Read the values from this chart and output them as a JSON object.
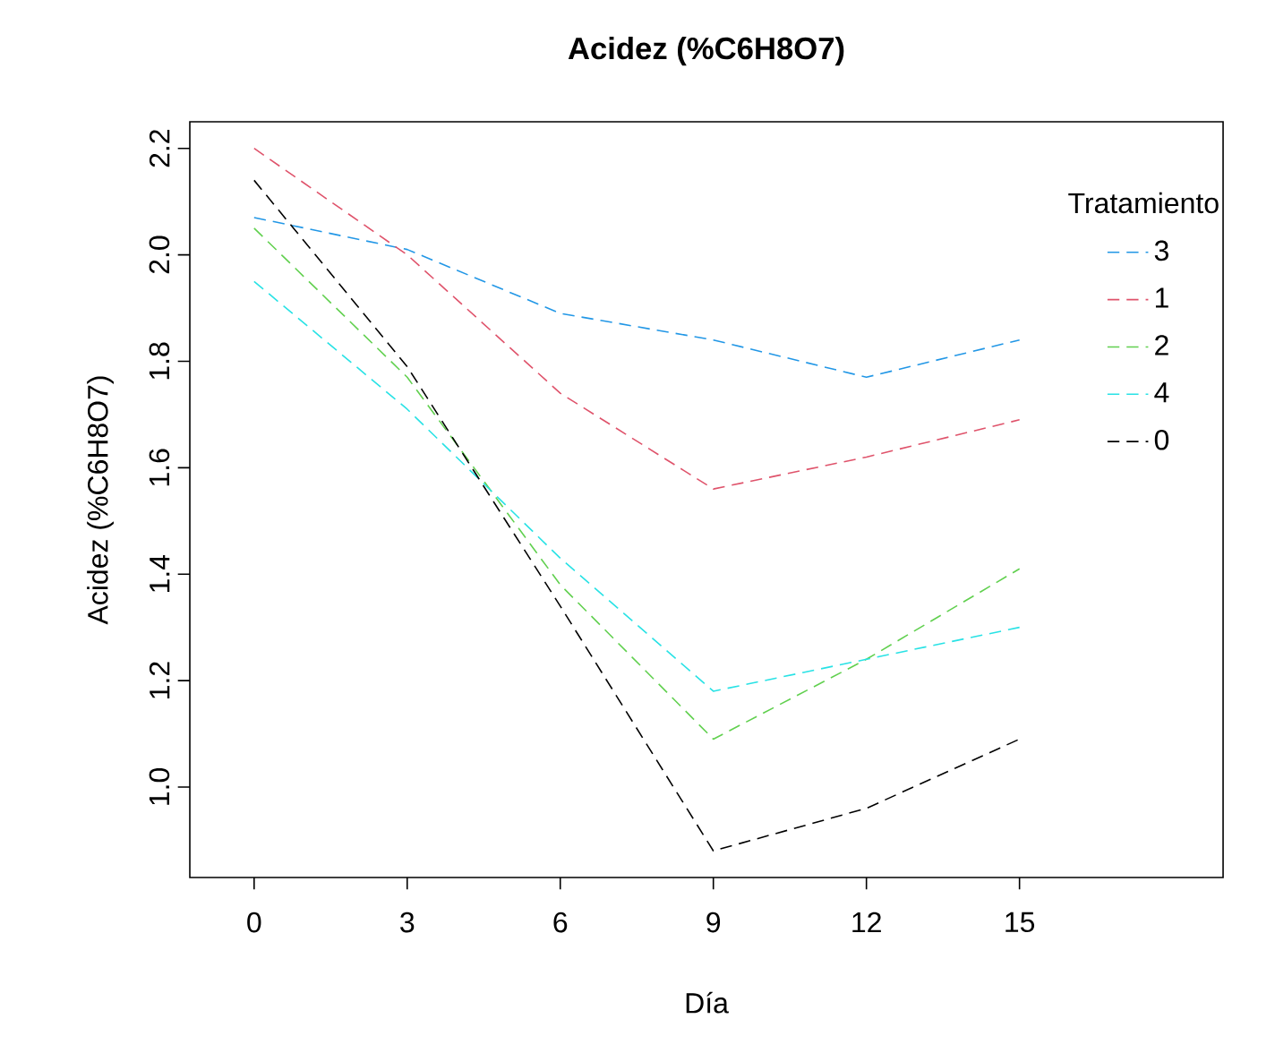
{
  "chart_data": {
    "type": "line",
    "title": "Acidez (%C6H8O7)",
    "xlabel": "Día",
    "ylabel": "Acidez (%C6H8O7)",
    "legend_title": "Tratamiento",
    "categories": [
      "0",
      "3",
      "6",
      "9",
      "12",
      "15"
    ],
    "ylim": [
      0.83,
      2.25
    ],
    "yticks": [
      {
        "value": 1,
        "label": "1.0"
      },
      1.2,
      1.4,
      1.6,
      1.8,
      {
        "value": 2,
        "label": "2.0"
      },
      2.2
    ],
    "legend": "top right",
    "line_style": "dashed",
    "grid": false,
    "marker": "none",
    "series": [
      {
        "name": "3",
        "color": "#2297e6",
        "values": [
          2.07,
          2.01,
          1.89,
          1.84,
          1.77,
          1.84
        ]
      },
      {
        "name": "1",
        "color": "#df536b",
        "values": [
          2.2,
          2.0,
          1.74,
          1.56,
          1.62,
          1.69
        ]
      },
      {
        "name": "2",
        "color": "#61d04f",
        "values": [
          2.05,
          1.77,
          1.38,
          1.09,
          1.24,
          1.41
        ]
      },
      {
        "name": "4",
        "color": "#28e2e5",
        "values": [
          1.95,
          1.71,
          1.43,
          1.18,
          1.24,
          1.3
        ]
      },
      {
        "name": "0",
        "color": "#000000",
        "values": [
          2.14,
          1.79,
          1.34,
          0.88,
          0.96,
          1.09
        ]
      }
    ]
  }
}
